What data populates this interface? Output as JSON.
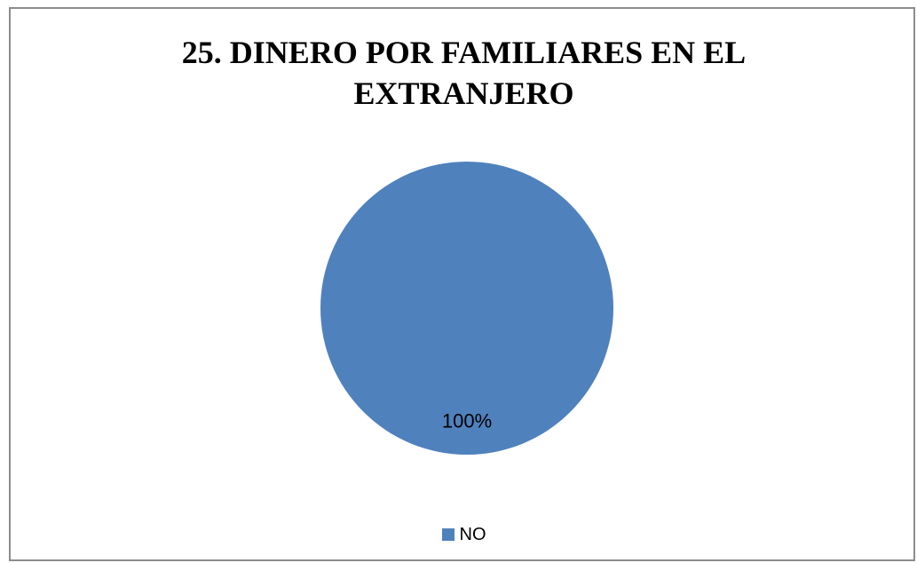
{
  "chart_data": {
    "type": "pie",
    "title": "25. DINERO POR FAMILIARES EN EL EXTRANJERO",
    "categories": [
      "NO"
    ],
    "values": [
      100
    ],
    "data_labels": [
      "100%"
    ],
    "colors": [
      "#4f81bd"
    ],
    "legend": "bottom"
  }
}
